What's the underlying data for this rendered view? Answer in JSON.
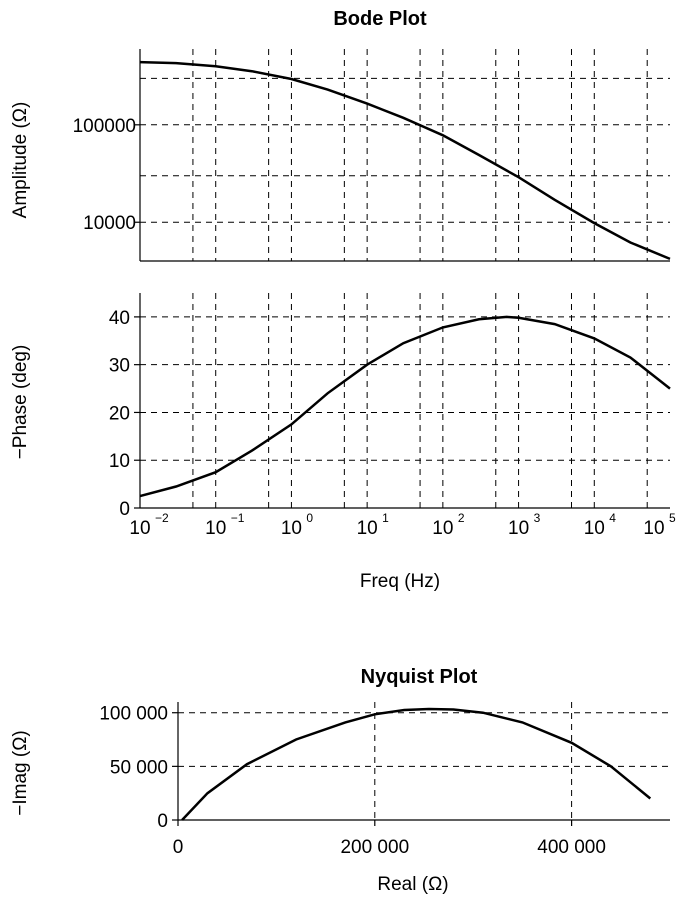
{
  "chart_data": [
    {
      "type": "line",
      "title": "Bode Plot",
      "xlabel": "Freq (Hz)",
      "ylabel": "Amplitude (Ω)",
      "xscale": "log",
      "yscale": "log",
      "xlim": [
        0.01,
        100000
      ],
      "ylim": [
        4000,
        600000
      ],
      "yticks": [
        10000,
        100000
      ],
      "ytick_labels": [
        "10000",
        "100000"
      ],
      "grid": true,
      "x": [
        0.01,
        0.03,
        0.1,
        0.3,
        1,
        3,
        10,
        30,
        100,
        300,
        1000,
        3000,
        10000,
        30000,
        100000
      ],
      "y": [
        440000,
        430000,
        400000,
        355000,
        295000,
        230000,
        165000,
        118000,
        78000,
        49000,
        29000,
        17000,
        9800,
        6200,
        4200
      ]
    },
    {
      "type": "line",
      "xlabel": "Freq (Hz)",
      "ylabel": "−Phase (deg)",
      "xscale": "log",
      "xlim": [
        0.01,
        100000
      ],
      "ylim": [
        0,
        45
      ],
      "yticks": [
        0,
        10,
        20,
        30,
        40
      ],
      "ytick_labels": [
        "0",
        "10",
        "20",
        "30",
        "40"
      ],
      "xtick_base": "10",
      "xtick_exponents": [
        "−2",
        "−1",
        "0",
        "1",
        "2",
        "3",
        "4",
        "5"
      ],
      "grid": true,
      "x": [
        0.01,
        0.03,
        0.1,
        0.3,
        1,
        3,
        10,
        30,
        100,
        300,
        700,
        1000,
        3000,
        10000,
        30000,
        100000
      ],
      "y": [
        2.5,
        4.5,
        7.5,
        12,
        17.5,
        24,
        30,
        34.5,
        37.8,
        39.5,
        40,
        39.8,
        38.5,
        35.5,
        31.5,
        25
      ]
    },
    {
      "type": "line",
      "title": "Nyquist Plot",
      "xlabel": "Real (Ω)",
      "ylabel": "−Imag (Ω)",
      "xlim": [
        0,
        500000
      ],
      "ylim": [
        0,
        110000
      ],
      "xticks": [
        0,
        200000,
        400000
      ],
      "xtick_labels": [
        "0",
        "200 000",
        "400 000"
      ],
      "yticks": [
        0,
        50000,
        100000
      ],
      "ytick_labels": [
        "0",
        "50 000",
        "100 000"
      ],
      "grid": true,
      "x": [
        4200,
        30000,
        70000,
        120000,
        170000,
        200000,
        230000,
        255000,
        280000,
        310000,
        350000,
        400000,
        440000,
        480000
      ],
      "y": [
        0,
        25000,
        52000,
        75000,
        91000,
        98500,
        102500,
        103500,
        103000,
        100000,
        91000,
        72000,
        50000,
        20000
      ]
    }
  ]
}
